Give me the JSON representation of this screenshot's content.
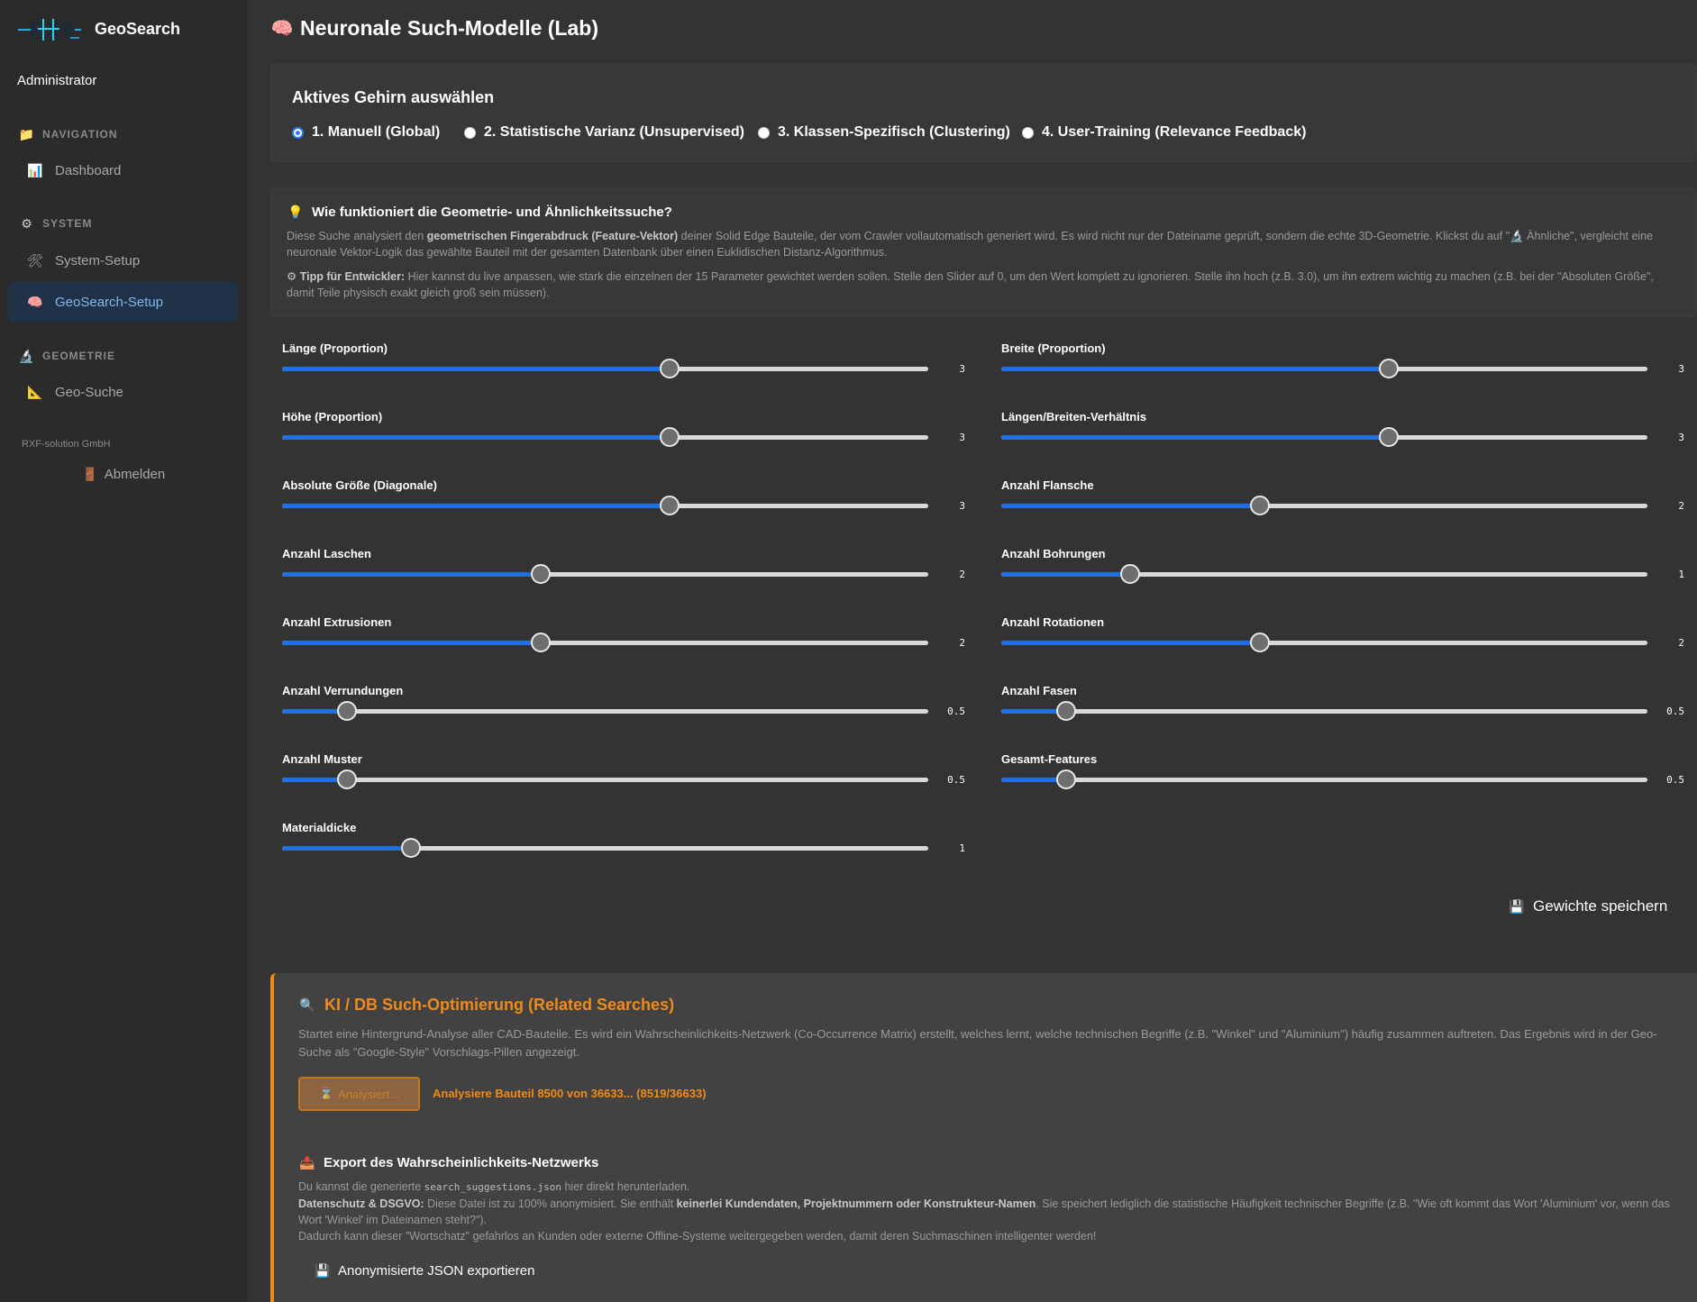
{
  "sidebar": {
    "brand": "GeoSearch",
    "user": "Administrator",
    "sections": [
      {
        "title": "NAVIGATION",
        "icon": "folder-icon",
        "items": [
          {
            "label": "Dashboard",
            "icon": "chart-icon"
          }
        ]
      },
      {
        "title": "SYSTEM",
        "icon": "gear-icon",
        "items": [
          {
            "label": "System-Setup",
            "icon": "tools-icon"
          },
          {
            "label": "GeoSearch-Setup",
            "icon": "brain-icon"
          }
        ]
      },
      {
        "title": "GEOMETRIE",
        "icon": "microscope-icon",
        "items": [
          {
            "label": "Geo-Suche",
            "icon": "ruler-icon"
          }
        ]
      }
    ],
    "company": "RXF-solution GmbH",
    "logout": "Abmelden"
  },
  "page": {
    "title": "Neuronale Such-Modelle (Lab)"
  },
  "brain": {
    "title": "Aktives Gehirn auswählen",
    "options": [
      {
        "label": "1. Manuell (Global)",
        "checked": true
      },
      {
        "label": "2. Statistische Varianz (Unsupervised)",
        "checked": false
      },
      {
        "label": "3. Klassen-Spezifisch (Clustering)",
        "checked": false
      },
      {
        "label": "4. User-Training (Relevance Feedback)",
        "checked": false
      }
    ]
  },
  "info": {
    "title": "Wie funktioniert die Geometrie- und Ähnlichkeitssuche?",
    "p1_a": "Diese Suche analysiert den ",
    "p1_b": "geometrischen Fingerabdruck (Feature-Vektor)",
    "p1_c": " deiner Solid Edge Bauteile, der vom Crawler vollautomatisch generiert wird. Es wird nicht nur der Dateiname geprüft, sondern die echte 3D-Geometrie. Klickst du auf \"🔬 Ähnliche\", vergleicht eine neuronale Vektor-Logik das gewählte Bauteil mit der gesamten Datenbank über einen Euklidischen Distanz-Algorithmus.",
    "p2_a": "Tipp für Entwickler:",
    "p2_b": " Hier kannst du live anpassen, wie stark die einzelnen der 15 Parameter gewichtet werden sollen. Stelle den Slider auf 0, um den Wert komplett zu ignorieren. Stelle ihn hoch (z.B. 3.0), um ihn extrem wichtig zu machen (z.B. bei der \"Absoluten Größe\", damit Teile physisch exakt gleich groß sein müssen)."
  },
  "sliders": [
    {
      "label": "Länge (Proportion)",
      "value": 3,
      "display": "3"
    },
    {
      "label": "Breite (Proportion)",
      "value": 3,
      "display": "3"
    },
    {
      "label": "Höhe (Proportion)",
      "value": 3,
      "display": "3"
    },
    {
      "label": "Längen/Breiten-Verhältnis",
      "value": 3,
      "display": "3"
    },
    {
      "label": "Absolute Größe (Diagonale)",
      "value": 3,
      "display": "3"
    },
    {
      "label": "Anzahl Flansche",
      "value": 2,
      "display": "2"
    },
    {
      "label": "Anzahl Laschen",
      "value": 2,
      "display": "2"
    },
    {
      "label": "Anzahl Bohrungen",
      "value": 1,
      "display": "1"
    },
    {
      "label": "Anzahl Extrusionen",
      "value": 2,
      "display": "2"
    },
    {
      "label": "Anzahl Rotationen",
      "value": 2,
      "display": "2"
    },
    {
      "label": "Anzahl Verrundungen",
      "value": 0.5,
      "display": "0.5"
    },
    {
      "label": "Anzahl Fasen",
      "value": 0.5,
      "display": "0.5"
    },
    {
      "label": "Anzahl Muster",
      "value": 0.5,
      "display": "0.5"
    },
    {
      "label": "Gesamt-Features",
      "value": 0.5,
      "display": "0.5"
    },
    {
      "label": "Materialdicke",
      "value": 1,
      "display": "1"
    }
  ],
  "save_weights": "Gewichte speichern",
  "ai": {
    "title": "KI / DB Such-Optimierung (Related Searches)",
    "desc": "Startet eine Hintergrund-Analyse aller CAD-Bauteile. Es wird ein Wahrscheinlichkeits-Netzwerk (Co-Occurrence Matrix) erstellt, welches lernt, welche technischen Begriffe (z.B. \"Winkel\" und \"Aluminium\") häufig zusammen auftreten. Das Ergebnis wird in der Geo-Suche als \"Google-Style\" Vorschlags-Pillen angezeigt.",
    "button": "Analysiert...",
    "progress": "Analysiere Bauteil 8500 von 36633... (8519/36633)",
    "export_title": "Export des Wahrscheinlichkeits-Netzwerks",
    "export_l1_a": "Du kannst die generierte ",
    "export_l1_code": "search_suggestions.json",
    "export_l1_b": " hier direkt herunterladen.",
    "export_l2_a": "Datenschutz & DSGVO:",
    "export_l2_b": " Diese Datei ist zu 100% anonymisiert. Sie enthält ",
    "export_l2_c": "keinerlei Kundendaten, Projektnummern oder Konstrukteur-Namen",
    "export_l2_d": ". Sie speichert lediglich die statistische Häufigkeit technischer Begriffe (z.B. \"Wie oft kommt das Wort 'Aluminium' vor, wenn das Wort 'Winkel' im Dateinamen steht?\").",
    "export_l3": "Dadurch kann dieser \"Wortschatz\" gefahrlos an Kunden oder externe Offline-Systeme weitergegeben werden, damit deren Suchmaschinen intelligenter werden!",
    "export_button": "Anonymisierte JSON exportieren"
  },
  "colors": {
    "accent": "#1f6fe6",
    "orange": "#f08a1a",
    "active_nav_bg": "#1f3247"
  }
}
